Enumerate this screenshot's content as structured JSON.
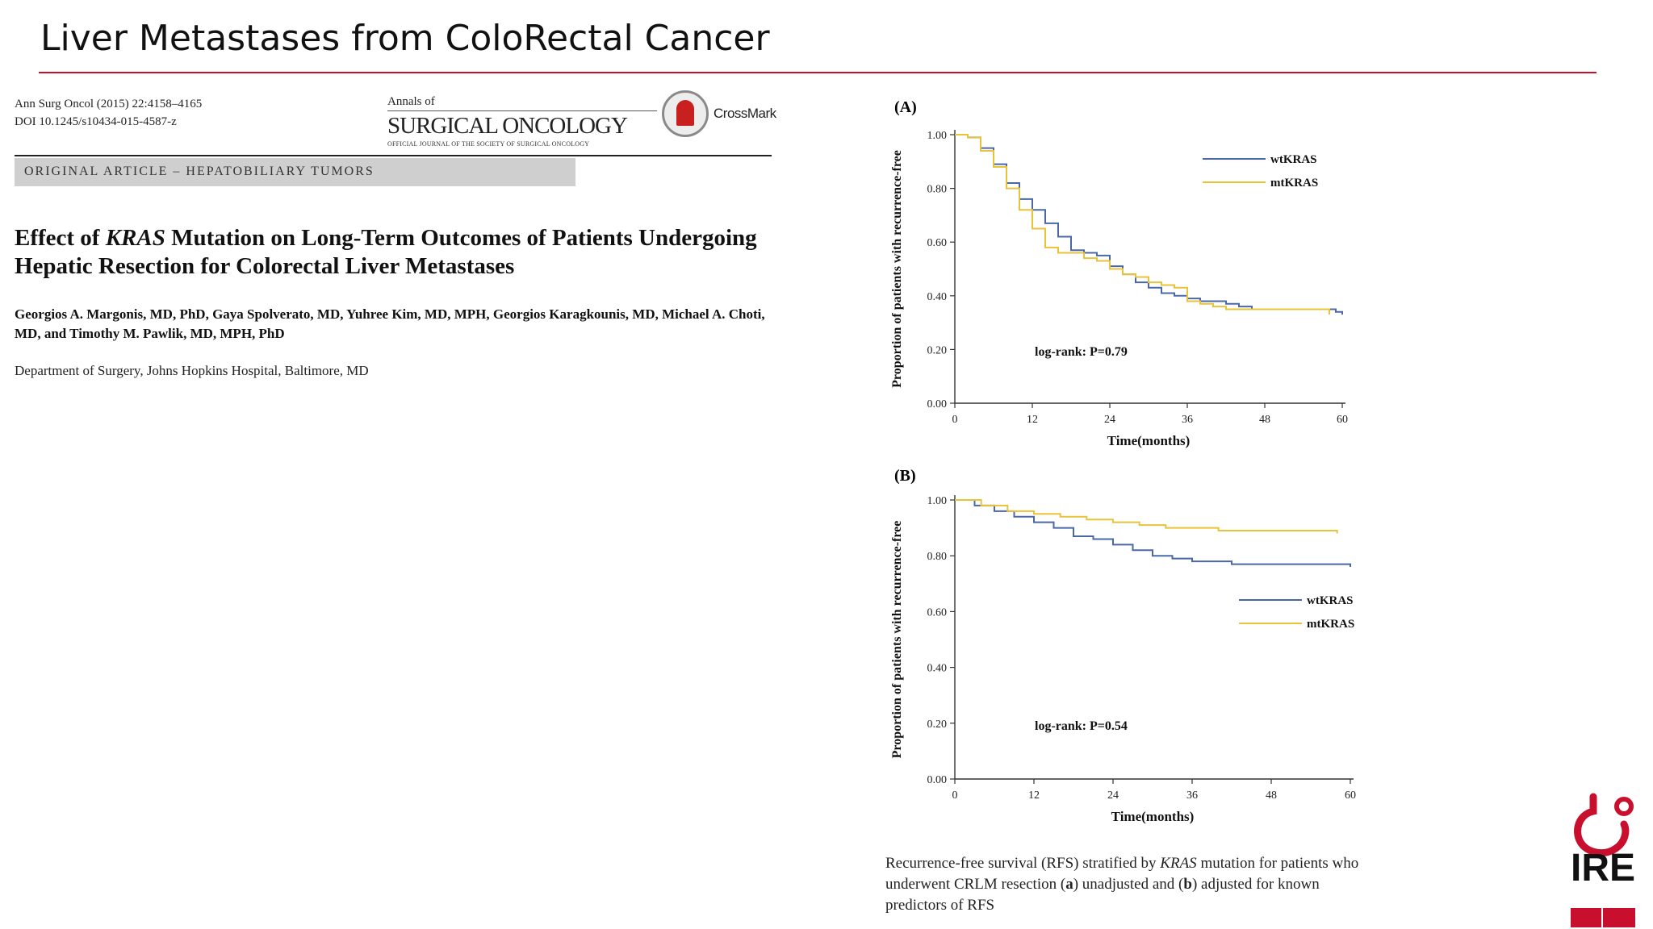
{
  "slide": {
    "title": "Liver Metastases from ColoRectal Cancer"
  },
  "paper": {
    "citation_line1": "Ann Surg Oncol (2015) 22:4158–4165",
    "citation_line2": "DOI 10.1245/s10434-015-4587-z",
    "journal_prefix": "Annals of",
    "journal_name": "SURGICAL ONCOLOGY",
    "journal_subtitle": "OFFICIAL JOURNAL OF THE SOCIETY OF SURGICAL ONCOLOGY",
    "crossmark": "CrossMark",
    "section": "ORIGINAL ARTICLE – HEPATOBILIARY TUMORS",
    "title_part1": "Effect of ",
    "title_italic": "KRAS",
    "title_part2": " Mutation on Long-Term Outcomes of Patients Undergoing Hepatic Resection for Colorectal Liver Metastases",
    "authors": "Georgios A. Margonis, MD, PhD, Gaya Spolverato, MD, Yuhree Kim, MD, MPH, Georgios Karagkounis, MD, Michael A. Choti, MD, and Timothy M. Pawlik, MD, MPH, PhD",
    "affiliation": "Department of Surgery, Johns Hopkins Hospital, Baltimore, MD"
  },
  "caption": {
    "part1": "Recurrence-free survival (RFS) stratified by ",
    "italic": "KRAS",
    "part2": " mutation for patients who underwent CRLM resection (",
    "a": "a",
    "part3": ") unadjusted and (",
    "b": "b",
    "part4": ") adjusted for known predictors of RFS"
  },
  "colors": {
    "accent_red": "#c8102e",
    "wtKRAS": "#4a68a8",
    "mtKRAS": "#e8c33a"
  },
  "chart_data": [
    {
      "type": "line",
      "panel": "(A)",
      "xlabel": "Time(months)",
      "ylabel": "Proportion of patients with recurrence-free",
      "xlim": [
        0,
        60
      ],
      "ylim": [
        0,
        1
      ],
      "xticks": [
        "0",
        "12",
        "24",
        "36",
        "48",
        "60"
      ],
      "yticks": [
        "0.00",
        "0.20",
        "0.40",
        "0.60",
        "0.80",
        "1.00"
      ],
      "annotation": "log-rank: P=0.79",
      "legend_position": "top-right",
      "series": [
        {
          "name": "wtKRAS",
          "x": [
            0,
            2,
            4,
            6,
            8,
            10,
            12,
            14,
            16,
            18,
            20,
            22,
            24,
            26,
            28,
            30,
            32,
            34,
            36,
            38,
            40,
            42,
            44,
            46,
            48,
            50,
            52,
            54,
            56,
            58,
            59,
            60
          ],
          "y": [
            1.0,
            0.99,
            0.95,
            0.89,
            0.82,
            0.76,
            0.72,
            0.67,
            0.62,
            0.57,
            0.56,
            0.55,
            0.51,
            0.48,
            0.45,
            0.43,
            0.41,
            0.4,
            0.39,
            0.38,
            0.38,
            0.37,
            0.36,
            0.35,
            0.35,
            0.35,
            0.35,
            0.35,
            0.35,
            0.35,
            0.34,
            0.33
          ]
        },
        {
          "name": "mtKRAS",
          "x": [
            0,
            2,
            4,
            6,
            8,
            10,
            12,
            14,
            16,
            18,
            20,
            22,
            24,
            26,
            28,
            30,
            32,
            34,
            36,
            38,
            40,
            42,
            44,
            46,
            48,
            50,
            52,
            54,
            56,
            58
          ],
          "y": [
            1.0,
            0.99,
            0.94,
            0.88,
            0.8,
            0.72,
            0.65,
            0.58,
            0.56,
            0.56,
            0.54,
            0.53,
            0.5,
            0.48,
            0.47,
            0.45,
            0.44,
            0.43,
            0.38,
            0.37,
            0.36,
            0.35,
            0.35,
            0.35,
            0.35,
            0.35,
            0.35,
            0.35,
            0.35,
            0.33
          ]
        }
      ]
    },
    {
      "type": "line",
      "panel": "(B)",
      "xlabel": "Time(months)",
      "ylabel": "Proportion of patients with recurrence-free",
      "xlim": [
        0,
        60
      ],
      "ylim": [
        0,
        1
      ],
      "xticks": [
        "0",
        "12",
        "24",
        "36",
        "48",
        "60"
      ],
      "yticks": [
        "0.00",
        "0.20",
        "0.40",
        "0.60",
        "0.80",
        "1.00"
      ],
      "annotation": "log-rank: P=0.54",
      "legend_position": "right",
      "series": [
        {
          "name": "wtKRAS",
          "x": [
            0,
            3,
            6,
            9,
            12,
            15,
            18,
            21,
            24,
            27,
            30,
            33,
            36,
            39,
            42,
            45,
            48,
            51,
            54,
            57,
            59,
            60
          ],
          "y": [
            1.0,
            0.98,
            0.96,
            0.94,
            0.92,
            0.9,
            0.87,
            0.86,
            0.84,
            0.82,
            0.8,
            0.79,
            0.78,
            0.78,
            0.77,
            0.77,
            0.77,
            0.77,
            0.77,
            0.77,
            0.77,
            0.76
          ]
        },
        {
          "name": "mtKRAS",
          "x": [
            0,
            4,
            8,
            12,
            16,
            20,
            24,
            28,
            32,
            36,
            40,
            44,
            48,
            52,
            56,
            58
          ],
          "y": [
            1.0,
            0.98,
            0.96,
            0.95,
            0.94,
            0.93,
            0.92,
            0.91,
            0.9,
            0.9,
            0.89,
            0.89,
            0.89,
            0.89,
            0.89,
            0.88
          ]
        }
      ]
    }
  ],
  "logo": {
    "text": "IRE"
  }
}
